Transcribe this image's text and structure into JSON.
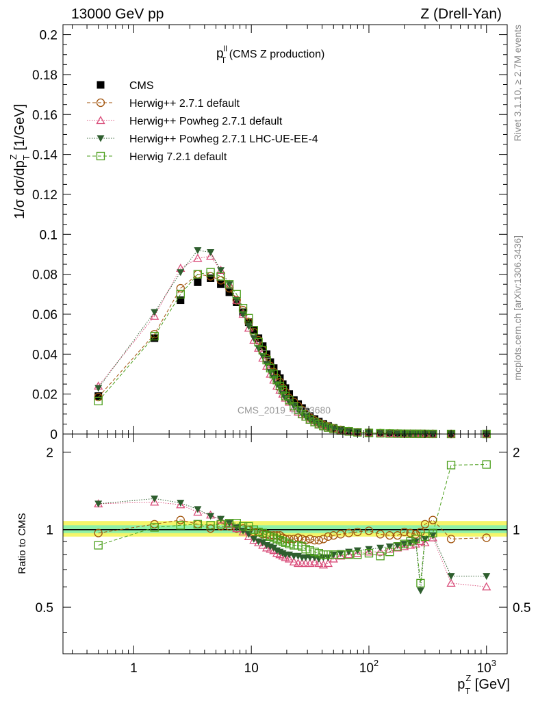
{
  "header": {
    "left": "13000 GeV pp",
    "right": "Z (Drell-Yan)"
  },
  "side_labels": {
    "rivet": "Rivet 3.1.10, ≥ 2.7M events",
    "mcplots": "mcplots.cern.ch [arXiv:1306.3436]"
  },
  "plot_title": {
    "main": "p",
    "sup": "ll",
    "sub": "T",
    "rest": " (CMS Z production)"
  },
  "watermark": "CMS_2019_I1753680",
  "colors": {
    "cms": "#000000",
    "herwig_pp": "#a0520a",
    "powheg": "#d94d7a",
    "powheg_ue": "#2e5e2e",
    "herwig72": "#4a9e1a",
    "band_outer": "#f5f56a",
    "band_inner": "#8ef0a8"
  },
  "chart_data": [
    {
      "type": "scatter",
      "name": "main",
      "xscale": "log",
      "xlim": [
        0.25,
        1500
      ],
      "ylim": [
        0,
        0.205
      ],
      "ylabel": "1/σ dσ/dp_T^Z [1/GeV]",
      "ylabel_text": "1/σ dσ/dp",
      "ylabel_sub": "T",
      "ylabel_sup": "Z",
      "ylabel_unit": " [1/GeV]",
      "yticks": [
        0,
        0.02,
        0.04,
        0.06,
        0.08,
        0.1,
        0.12,
        0.14,
        0.16,
        0.18,
        0.2
      ],
      "ytick_labels": [
        "0",
        "0.02",
        "0.04",
        "0.06",
        "0.08",
        "0.1",
        "0.12",
        "0.14",
        "0.16",
        "0.18",
        "0.2"
      ],
      "x": [
        0.5,
        1.5,
        2.5,
        3.5,
        4.5,
        5.5,
        6.5,
        7.5,
        8.5,
        9.5,
        10.5,
        11.5,
        12.5,
        13.5,
        14.5,
        15.5,
        16.5,
        17.5,
        18.5,
        19.5,
        21,
        23,
        25,
        27,
        29,
        31.5,
        34.5,
        37.5,
        41,
        45,
        50,
        57.5,
        67.5,
        80,
        100,
        125,
        150,
        175,
        200,
        225,
        250,
        275,
        300,
        350,
        500,
        1000
      ],
      "series": [
        {
          "name": "CMS",
          "key": "cms",
          "marker": "filled-square",
          "line": "none",
          "values": [
            0.019,
            0.048,
            0.067,
            0.076,
            0.078,
            0.075,
            0.071,
            0.066,
            0.061,
            0.056,
            0.052,
            0.048,
            0.044,
            0.04,
            0.036,
            0.033,
            0.03,
            0.028,
            0.025,
            0.023,
            0.02,
            0.017,
            0.015,
            0.013,
            0.011,
            0.009,
            0.0075,
            0.0062,
            0.005,
            0.004,
            0.0031,
            0.0022,
            0.0015,
            0.001,
            0.0007,
            0.00045,
            0.0003,
            0.0002,
            0.00015,
            0.00011,
            9e-05,
            7e-05,
            5e-05,
            3e-05,
            1e-05,
            3e-06
          ]
        },
        {
          "name": "Herwig++ 2.7.1 default",
          "key": "herwig_pp",
          "marker": "open-circle",
          "line": "dashed",
          "values": [
            0.0185,
            0.05,
            0.073,
            0.08,
            0.079,
            0.077,
            0.073,
            0.067,
            0.062,
            0.056,
            0.051,
            0.047,
            0.042,
            0.038,
            0.034,
            0.031,
            0.028,
            0.026,
            0.023,
            0.021,
            0.018,
            0.016,
            0.014,
            0.012,
            0.01,
            0.0082,
            0.0068,
            0.0056,
            0.0046,
            0.0037,
            0.0029,
            0.0021,
            0.0014,
            0.0009,
            0.0007,
            0.00043,
            0.00029,
            0.0002,
            0.00015,
            0.00011,
            9e-05,
            7e-05,
            5e-05,
            3e-05,
            1e-05,
            3e-06
          ]
        },
        {
          "name": "Herwig++ Powheg 2.7.1 default",
          "key": "powheg",
          "marker": "open-triangle",
          "line": "dotted",
          "values": [
            0.024,
            0.059,
            0.083,
            0.088,
            0.089,
            0.082,
            0.075,
            0.067,
            0.06,
            0.053,
            0.047,
            0.043,
            0.038,
            0.034,
            0.03,
            0.027,
            0.024,
            0.022,
            0.02,
            0.018,
            0.016,
            0.013,
            0.011,
            0.0098,
            0.0085,
            0.007,
            0.0057,
            0.0047,
            0.0038,
            0.003,
            0.0024,
            0.0017,
            0.0012,
            0.0008,
            0.00055,
            0.00038,
            0.00025,
            0.00017,
            0.00012,
            9e-05,
            7e-05,
            6e-05,
            4e-05,
            2.5e-05,
            9e-06,
            2.5e-06
          ]
        },
        {
          "name": "Herwig++ Powheg 2.7.1 LHC-UE-EE-4",
          "key": "powheg_ue",
          "marker": "filled-triangle-down",
          "line": "dotted",
          "values": [
            0.023,
            0.061,
            0.081,
            0.092,
            0.091,
            0.082,
            0.075,
            0.067,
            0.06,
            0.054,
            0.048,
            0.043,
            0.039,
            0.035,
            0.031,
            0.028,
            0.025,
            0.023,
            0.02,
            0.018,
            0.016,
            0.014,
            0.012,
            0.01,
            0.0088,
            0.0072,
            0.0059,
            0.0048,
            0.0039,
            0.0031,
            0.0025,
            0.0018,
            0.0013,
            0.00085,
            0.00058,
            0.0004,
            0.00026,
            0.00018,
            0.00013,
            0.0001,
            8e-05,
            6e-05,
            4e-05,
            2.5e-05,
            9e-06,
            2e-06
          ]
        },
        {
          "name": "Herwig 7.2.1 default",
          "key": "herwig72",
          "marker": "open-square",
          "line": "dashed",
          "values": [
            0.0165,
            0.049,
            0.07,
            0.08,
            0.081,
            0.079,
            0.075,
            0.07,
            0.063,
            0.058,
            0.052,
            0.046,
            0.042,
            0.037,
            0.033,
            0.03,
            0.027,
            0.024,
            0.022,
            0.019,
            0.017,
            0.014,
            0.012,
            0.01,
            0.0088,
            0.0073,
            0.006,
            0.0049,
            0.004,
            0.0032,
            0.0026,
            0.0018,
            0.0013,
            0.00085,
            0.00057,
            0.00036,
            0.00025,
            0.00017,
            0.00012,
            0.0001,
            8e-05,
            4e-05,
            5e-05,
            3e-05,
            1e-05,
            5e-06
          ]
        }
      ]
    },
    {
      "type": "scatter",
      "name": "ratio",
      "xscale": "log",
      "xlim": [
        0.25,
        1500
      ],
      "ylim": [
        0.33,
        2.35
      ],
      "ylabel": "Ratio to CMS",
      "xlabel_text": "p",
      "xlabel_sub": "T",
      "xlabel_sup": "Z",
      "xlabel_unit": " [GeV]",
      "xtick_labels": [
        {
          "value": 1,
          "base": "1",
          "exp": ""
        },
        {
          "value": 10,
          "base": "10",
          "exp": ""
        },
        {
          "value": 100,
          "base": "10",
          "exp": "2"
        },
        {
          "value": 1000,
          "base": "10",
          "exp": "3"
        }
      ],
      "yticks": [
        0.5,
        1,
        2
      ],
      "ytick_labels": [
        "0.5",
        "1",
        "2"
      ],
      "reference": 1,
      "band_outer": [
        0.94,
        1.08
      ],
      "band_inner": [
        0.97,
        1.04
      ],
      "x": [
        0.5,
        1.5,
        2.5,
        3.5,
        4.5,
        5.5,
        6.5,
        7.5,
        8.5,
        9.5,
        10.5,
        11.5,
        12.5,
        13.5,
        14.5,
        15.5,
        16.5,
        17.5,
        18.5,
        19.5,
        21,
        23,
        25,
        27,
        29,
        31.5,
        34.5,
        37.5,
        41,
        45,
        50,
        57.5,
        67.5,
        80,
        100,
        125,
        150,
        175,
        200,
        225,
        250,
        275,
        300,
        350,
        500,
        1000
      ],
      "series": [
        {
          "name": "Herwig++ 2.7.1 default",
          "key": "herwig_pp",
          "marker": "open-circle",
          "line": "dashed",
          "values": [
            0.97,
            1.05,
            1.09,
            1.05,
            1.01,
            1.03,
            1.03,
            1.01,
            1.01,
            1.0,
            0.98,
            0.98,
            0.96,
            0.96,
            0.95,
            0.95,
            0.95,
            0.95,
            0.93,
            0.92,
            0.92,
            0.92,
            0.93,
            0.92,
            0.91,
            0.92,
            0.91,
            0.91,
            0.92,
            0.94,
            0.95,
            0.96,
            0.97,
            0.98,
            0.99,
            0.96,
            0.95,
            0.95,
            0.98,
            0.97,
            0.96,
            0.98,
            1.05,
            1.09,
            0.92,
            0.93
          ]
        },
        {
          "name": "Herwig++ Powheg 2.7.1 default",
          "key": "powheg",
          "marker": "open-triangle",
          "line": "dotted",
          "values": [
            1.26,
            1.28,
            1.25,
            1.17,
            1.14,
            1.09,
            1.05,
            1.01,
            0.98,
            0.94,
            0.91,
            0.89,
            0.87,
            0.85,
            0.84,
            0.83,
            0.81,
            0.8,
            0.79,
            0.78,
            0.77,
            0.75,
            0.74,
            0.74,
            0.74,
            0.74,
            0.75,
            0.74,
            0.73,
            0.74,
            0.77,
            0.79,
            0.8,
            0.81,
            0.82,
            0.82,
            0.84,
            0.85,
            0.86,
            0.87,
            0.88,
            0.9,
            0.89,
            0.93,
            0.62,
            0.6
          ]
        },
        {
          "name": "Herwig++ Powheg 2.7.1 LHC-UE-EE-4",
          "key": "powheg_ue",
          "marker": "filled-triangle-down",
          "line": "dotted",
          "values": [
            1.26,
            1.32,
            1.27,
            1.2,
            1.13,
            1.1,
            1.06,
            1.02,
            0.99,
            0.96,
            0.92,
            0.9,
            0.89,
            0.87,
            0.86,
            0.85,
            0.83,
            0.82,
            0.81,
            0.8,
            0.8,
            0.79,
            0.79,
            0.78,
            0.78,
            0.78,
            0.78,
            0.77,
            0.78,
            0.78,
            0.8,
            0.81,
            0.82,
            0.83,
            0.84,
            0.85,
            0.86,
            0.87,
            0.88,
            0.89,
            0.9,
            0.58,
            0.92,
            0.95,
            0.66,
            0.66
          ]
        },
        {
          "name": "Herwig 7.2.1 default",
          "key": "herwig72",
          "marker": "open-square",
          "line": "dashed",
          "values": [
            0.87,
            1.02,
            1.04,
            1.05,
            1.04,
            1.05,
            1.06,
            1.06,
            1.03,
            1.03,
            1.0,
            0.98,
            0.97,
            0.95,
            0.94,
            0.93,
            0.92,
            0.91,
            0.9,
            0.89,
            0.88,
            0.87,
            0.87,
            0.86,
            0.84,
            0.83,
            0.82,
            0.81,
            0.8,
            0.8,
            0.8,
            0.8,
            0.8,
            0.8,
            0.81,
            0.79,
            0.82,
            0.86,
            0.88,
            0.9,
            0.92,
            0.62,
            0.94,
            0.97,
            1.78,
            1.79
          ]
        }
      ]
    }
  ]
}
